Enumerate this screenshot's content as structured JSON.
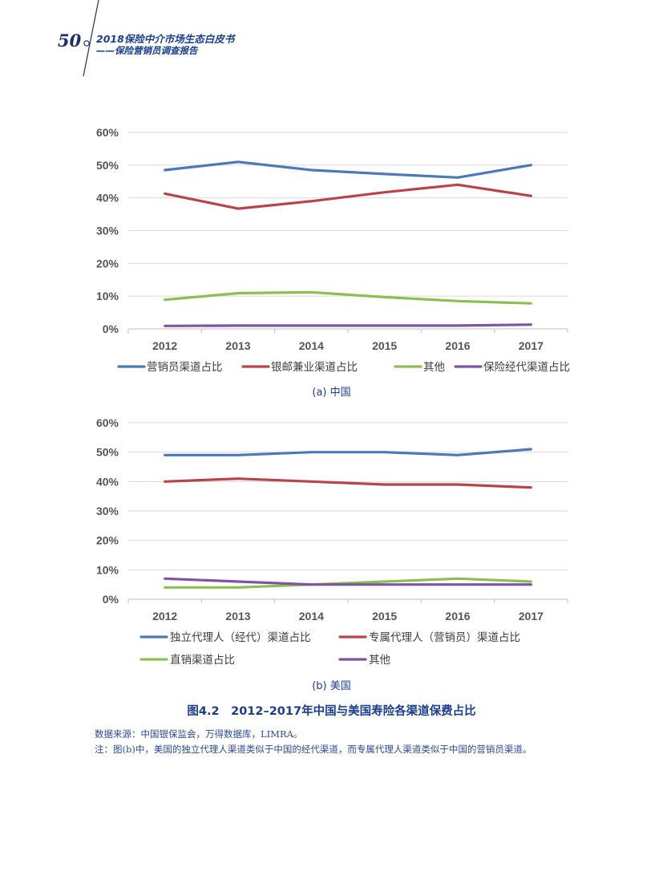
{
  "header": {
    "page_number": "50",
    "book_title": "2018保险中介市场生态白皮书",
    "book_subtitle": "——保险营销员调查报告"
  },
  "figure": {
    "title": "图4.2　2012–2017年中国与美国寿险各渠道保费占比",
    "source": "数据来源：中国银保监会，万得数据库，LIMRA。",
    "note": "注：图(b)中，美国的独立代理人渠道类似于中国的经代渠道，而专属代理人渠道类似于中国的营销员渠道。"
  },
  "chart_data": [
    {
      "type": "line",
      "caption": "(a) 中国",
      "categories": [
        "2012",
        "2013",
        "2014",
        "2015",
        "2016",
        "2017"
      ],
      "y_ticks": [
        "0%",
        "10%",
        "20%",
        "30%",
        "40%",
        "50%",
        "60%"
      ],
      "ylim": [
        0,
        60
      ],
      "series": [
        {
          "name": "营销员渠道占比",
          "color": "#4a78b8",
          "values": [
            48.5,
            51.0,
            48.5,
            47.3,
            46.2,
            50.0
          ]
        },
        {
          "name": "银邮兼业渠道占比",
          "color": "#b8434a",
          "values": [
            41.3,
            36.7,
            39.0,
            41.7,
            44.0,
            40.6
          ]
        },
        {
          "name": "其他",
          "color": "#8cbf50",
          "values": [
            8.9,
            10.9,
            11.2,
            9.7,
            8.5,
            7.8
          ]
        },
        {
          "name": "保险经代渠道占比",
          "color": "#7b55a3",
          "values": [
            0.9,
            1.0,
            1.0,
            1.0,
            1.0,
            1.3
          ]
        }
      ]
    },
    {
      "type": "line",
      "caption": "(b) 美国",
      "categories": [
        "2012",
        "2013",
        "2014",
        "2015",
        "2016",
        "2017"
      ],
      "y_ticks": [
        "0%",
        "10%",
        "20%",
        "30%",
        "40%",
        "50%",
        "60%"
      ],
      "ylim": [
        0,
        60
      ],
      "series": [
        {
          "name": "独立代理人（经代）渠道占比",
          "color": "#4a78b8",
          "values": [
            49,
            49,
            50,
            50,
            49,
            51
          ]
        },
        {
          "name": "专属代理人（营销员）渠道占比",
          "color": "#b8434a",
          "values": [
            40,
            41,
            40,
            39,
            39,
            38
          ]
        },
        {
          "name": "直销渠道占比",
          "color": "#8cbf50",
          "values": [
            4,
            4,
            5,
            6,
            7,
            6
          ]
        },
        {
          "name": "其他",
          "color": "#7b55a3",
          "values": [
            7,
            6,
            5,
            5,
            5,
            5
          ]
        }
      ]
    }
  ]
}
